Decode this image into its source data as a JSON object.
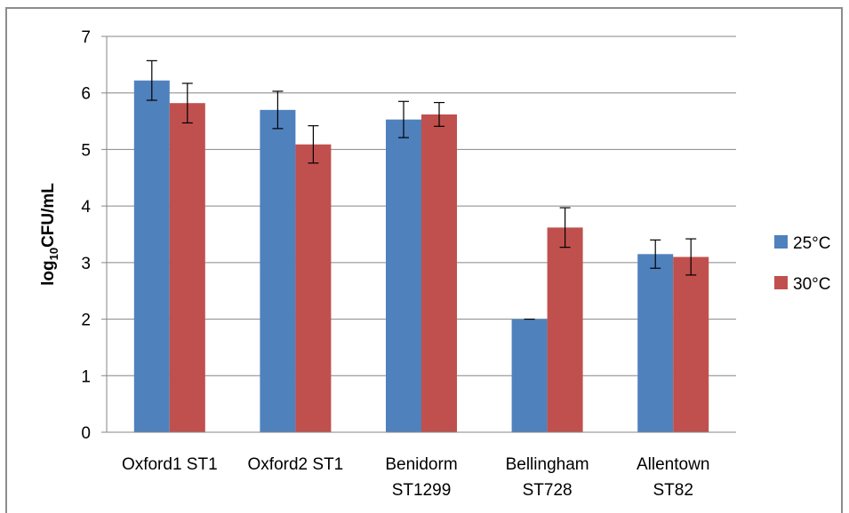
{
  "chart_data": {
    "type": "bar",
    "title": "",
    "xlabel": "",
    "ylabel_parts": {
      "base": "log",
      "sub": "10",
      "rest": "CFU/mL"
    },
    "ylim": [
      0,
      7
    ],
    "yticks": [
      "0",
      "1",
      "2",
      "3",
      "4",
      "5",
      "6",
      "7"
    ],
    "grid": true,
    "legend_position": "right",
    "categories": [
      [
        "Oxford1 ST1"
      ],
      [
        "Oxford2 ST1"
      ],
      [
        "Benidorm",
        "ST1299"
      ],
      [
        "Bellingham",
        "ST728"
      ],
      [
        "Allentown",
        "ST82"
      ]
    ],
    "series": [
      {
        "name": "25°C",
        "color": "#4f81bd",
        "values": [
          6.22,
          5.7,
          5.53,
          2.0,
          3.15
        ],
        "errors": [
          0.35,
          0.33,
          0.32,
          0.0,
          0.25
        ]
      },
      {
        "name": "30°C",
        "color": "#c0504d",
        "values": [
          5.82,
          5.09,
          5.62,
          3.62,
          3.1
        ],
        "errors": [
          0.35,
          0.33,
          0.21,
          0.35,
          0.32
        ]
      }
    ]
  }
}
